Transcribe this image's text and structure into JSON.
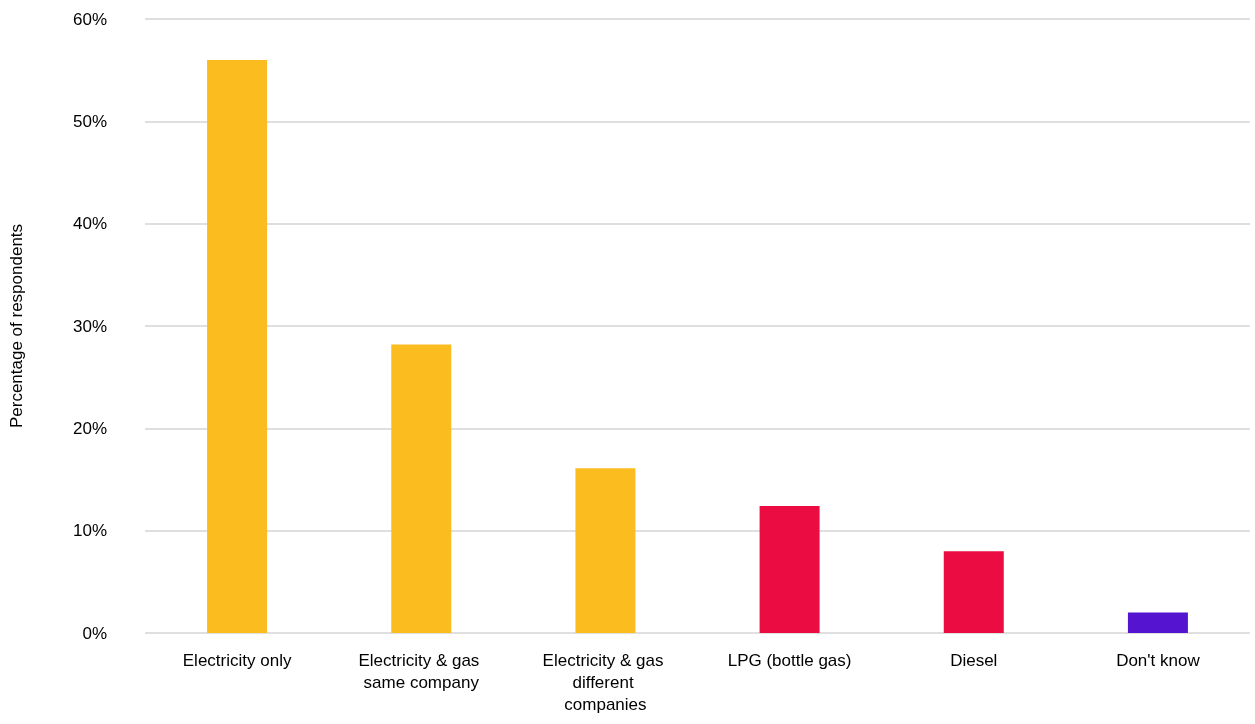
{
  "chart_data": {
    "type": "bar",
    "ylabel": "Percentage of respondents",
    "categories": [
      "Electricity only",
      "Electricity & gas same company",
      "Electricity & gas different companies",
      "LPG (bottle gas)",
      "Diesel",
      "Don't know"
    ],
    "values": [
      56.0,
      28.2,
      16.1,
      12.4,
      8.0,
      2.0
    ],
    "colors": [
      "#fbbc1f",
      "#fbbc1f",
      "#fbbc1f",
      "#eb0d42",
      "#eb0d42",
      "#5514d0"
    ],
    "ylim": [
      0,
      60
    ],
    "yticks": [
      {
        "value": 0,
        "label": "0%"
      },
      {
        "value": 10,
        "label": "10%"
      },
      {
        "value": 20,
        "label": "20%"
      },
      {
        "value": 30,
        "label": "30%"
      },
      {
        "value": 40,
        "label": "40%"
      },
      {
        "value": 50,
        "label": "50%"
      },
      {
        "value": 60,
        "label": "60%"
      }
    ],
    "grid": "y"
  }
}
